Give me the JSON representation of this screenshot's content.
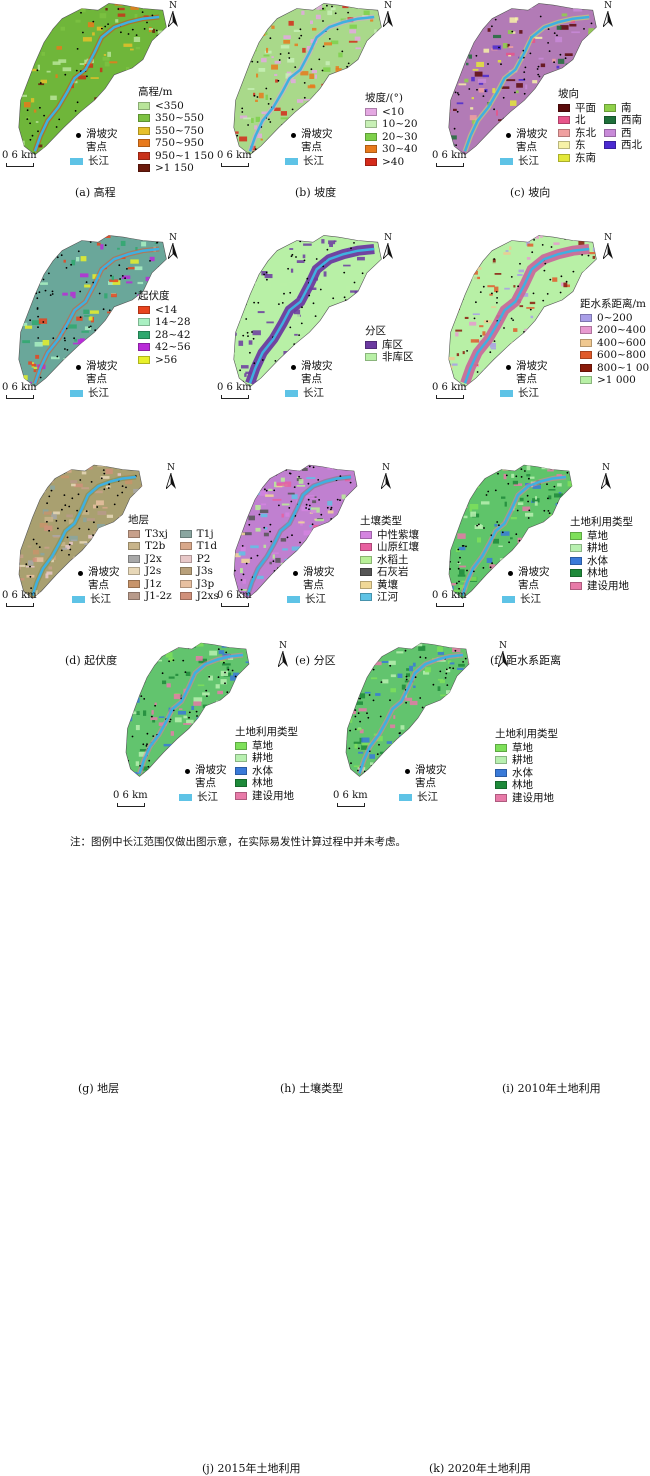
{
  "shared": {
    "north_label": "N",
    "scale_text": "0  6 km",
    "landslide_label_1": "滑坡灾",
    "landslide_label_2": "害点",
    "river_label": "长江"
  },
  "panels": [
    {
      "caption": "(a) 高程",
      "legend_title": "高程/m",
      "base_color": "#6fb63a",
      "accent_color": "#d6431c",
      "items": [
        {
          "label": "<350",
          "color": "#b9e59a"
        },
        {
          "label": "350~550",
          "color": "#7dc242"
        },
        {
          "label": "550~750",
          "color": "#e6c02a"
        },
        {
          "label": "750~950",
          "color": "#e87a1c"
        },
        {
          "label": "950~1 150",
          "color": "#c8321a"
        },
        {
          "label": ">1 150",
          "color": "#6b1a0c"
        }
      ]
    },
    {
      "caption": "(b) 坡度",
      "legend_title": "坡度/(°)",
      "base_color": "#a9d98a",
      "accent_color": "#d9a1d8",
      "items": [
        {
          "label": "<10",
          "color": "#e4a8e2"
        },
        {
          "label": "10~20",
          "color": "#c8f0b6"
        },
        {
          "label": "20~30",
          "color": "#7ed04a"
        },
        {
          "label": "30~40",
          "color": "#e87a1c"
        },
        {
          "label": ">40",
          "color": "#d42a1a"
        }
      ]
    },
    {
      "caption": "(c) 坡向",
      "legend_title": "坡向",
      "base_color": "#b27bb6",
      "accent_color": "#c9e36a",
      "items": [
        {
          "label": "平面",
          "color": "#5a0b0b"
        },
        {
          "label": "南",
          "color": "#8fd04a"
        },
        {
          "label": "北",
          "color": "#e8558a"
        },
        {
          "label": "西南",
          "color": "#1e6f3a"
        },
        {
          "label": "东北",
          "color": "#f0a0a0"
        },
        {
          "label": "西",
          "color": "#c88ad8"
        },
        {
          "label": "东",
          "color": "#f7f2a8"
        },
        {
          "label": "西北",
          "color": "#4a2ad0"
        },
        {
          "label": "东南",
          "color": "#e3e83a"
        }
      ]
    },
    {
      "caption": "(d) 起伏度",
      "legend_title": "起伏度",
      "base_color": "#6aa79a",
      "accent_color": "#e0552e",
      "items": [
        {
          "label": "<14",
          "color": "#e8441e"
        },
        {
          "label": "14~28",
          "color": "#a9f0c2"
        },
        {
          "label": "28~42",
          "color": "#2fa86e"
        },
        {
          "label": "42~56",
          "color": "#b92ad8"
        },
        {
          "label": ">56",
          "color": "#e8f02a"
        }
      ]
    },
    {
      "caption": "(e) 分区",
      "legend_title": "分区",
      "base_color": "#b8f0a6",
      "accent_color": "#6b3aa0",
      "items": [
        {
          "label": "库区",
          "color": "#6b3aa0"
        },
        {
          "label": "非库区",
          "color": "#b8f0a6"
        }
      ]
    },
    {
      "caption": "(f) 距水系距离",
      "legend_title": "距水系距离/m",
      "base_color": "#b8f0a6",
      "accent_color": "#c86a9a",
      "items": [
        {
          "label": "0~200",
          "color": "#a99ee8"
        },
        {
          "label": "200~400",
          "color": "#e89ad0"
        },
        {
          "label": "400~600",
          "color": "#f0c890"
        },
        {
          "label": "600~800",
          "color": "#e05a2a"
        },
        {
          "label": "800~1 000",
          "color": "#8a1a0a"
        },
        {
          "label": ">1 000",
          "color": "#b8f0a6"
        }
      ]
    },
    {
      "caption": "(g) 地层",
      "legend_title": "地层",
      "base_color": "#a9a070",
      "accent_color": "#7b8a4a",
      "items": [
        {
          "label": "T3xj",
          "color": "#c8a08a"
        },
        {
          "label": "T1j",
          "color": "#8aa6a0"
        },
        {
          "label": "T2b",
          "color": "#c8b48a"
        },
        {
          "label": "T1d",
          "color": "#d8a88a"
        },
        {
          "label": "J2x",
          "color": "#a8a8a8"
        },
        {
          "label": "P2",
          "color": "#e8c8c8"
        },
        {
          "label": "J2s",
          "color": "#e8d8b8"
        },
        {
          "label": "J3s",
          "color": "#b8a07a"
        },
        {
          "label": "J1z",
          "color": "#c8946a"
        },
        {
          "label": "J3p",
          "color": "#e8c0a0"
        },
        {
          "label": "J1-2z",
          "color": "#b89a8a"
        },
        {
          "label": "J2xs",
          "color": "#d0907a"
        }
      ]
    },
    {
      "caption": "(h) 土壤类型",
      "legend_title": "土壤类型",
      "base_color": "#c080d0",
      "accent_color": "#7a7a7a",
      "items": [
        {
          "label": "中性紫壤",
          "color": "#d484e0"
        },
        {
          "label": "山原红壤",
          "color": "#e860a0"
        },
        {
          "label": "水稻土",
          "color": "#b8f098"
        },
        {
          "label": "石灰岩",
          "color": "#555555"
        },
        {
          "label": "黄壤",
          "color": "#f0d898"
        },
        {
          "label": "江河",
          "color": "#5ec3e6"
        }
      ]
    },
    {
      "caption": "(i) 2010年土地利用",
      "legend_title": "土地利用类型",
      "base_color": "#5fc46a",
      "accent_color": "#e67aa0",
      "items": [
        {
          "label": "草地",
          "color": "#7ee05a"
        },
        {
          "label": "耕地",
          "color": "#b8f0b0"
        },
        {
          "label": "水体",
          "color": "#3a7ad8"
        },
        {
          "label": "林地",
          "color": "#1e8a3a"
        },
        {
          "label": "建设用地",
          "color": "#e87aa8"
        }
      ]
    },
    {
      "caption": "(j) 2015年土地利用",
      "legend_title": "土地利用类型",
      "base_color": "#62c46e",
      "accent_color": "#e67aa0",
      "items": [
        {
          "label": "草地",
          "color": "#7ee05a"
        },
        {
          "label": "耕地",
          "color": "#b8f0b0"
        },
        {
          "label": "水体",
          "color": "#3a7ad8"
        },
        {
          "label": "林地",
          "color": "#1e8a3a"
        },
        {
          "label": "建设用地",
          "color": "#e87aa8"
        }
      ]
    },
    {
      "caption": "(k) 2020年土地利用",
      "legend_title": "土地利用类型",
      "base_color": "#62c46e",
      "accent_color": "#e67aa0",
      "items": [
        {
          "label": "草地",
          "color": "#7ee05a"
        },
        {
          "label": "耕地",
          "color": "#b8f0b0"
        },
        {
          "label": "水体",
          "color": "#3a7ad8"
        },
        {
          "label": "林地",
          "color": "#1e8a3a"
        },
        {
          "label": "建设用地",
          "color": "#e87aa8"
        }
      ]
    }
  ],
  "note": "注：图例中长江范围仅做出图示意，在实际易发性计算过程中并未考虑。"
}
